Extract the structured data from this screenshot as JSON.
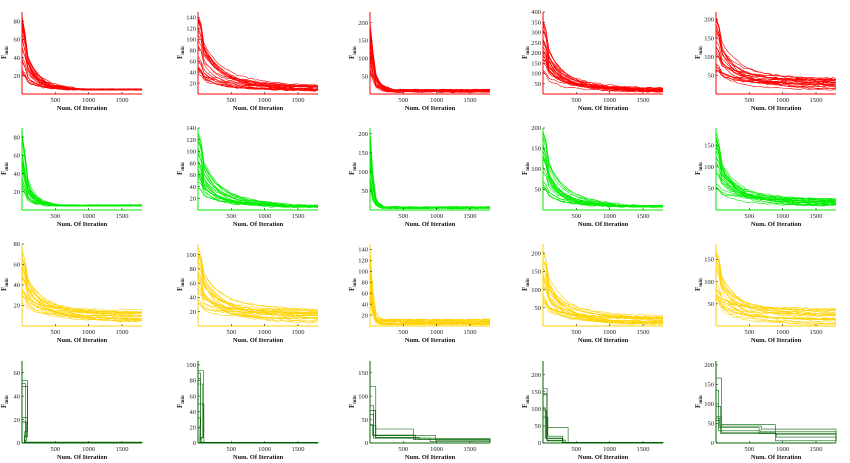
{
  "figure": {
    "xlabel": "Num. Of Iteration",
    "ylabel_main": "F",
    "ylabel_sub": "min",
    "x_ticks": [
      500,
      1000,
      1500
    ],
    "xlim": [
      1,
      1800
    ],
    "row_colors": [
      "#ff0000",
      "#00ee00",
      "#ffd200",
      "#006400"
    ]
  },
  "chart_data": [
    {
      "type": "line",
      "row": 0,
      "col": 0,
      "xlabel": "Num. Of Iteration",
      "ylabel": "F min",
      "ylim": [
        0,
        90
      ],
      "yticks": [
        20,
        40,
        60,
        80
      ],
      "grid": false,
      "series_envelope": {
        "start_max": 85,
        "final_min": 5,
        "final_max": 5,
        "converge_at": 1000
      }
    },
    {
      "type": "line",
      "row": 0,
      "col": 1,
      "xlabel": "Num. Of Iteration",
      "ylabel": "F min",
      "ylim": [
        0,
        150
      ],
      "yticks": [
        20,
        40,
        60,
        80,
        100,
        120,
        140
      ],
      "grid": false,
      "series_envelope": {
        "start_max": 145,
        "final_min": 6,
        "final_max": 16,
        "converge_at": 1800
      }
    },
    {
      "type": "line",
      "row": 0,
      "col": 2,
      "xlabel": "Num. Of Iteration",
      "ylabel": "F min",
      "ylim": [
        0,
        230
      ],
      "yticks": [
        50,
        100,
        150,
        200
      ],
      "grid": false,
      "series_envelope": {
        "start_max": 220,
        "final_min": 5,
        "final_max": 12,
        "converge_at": 400
      }
    },
    {
      "type": "line",
      "row": 0,
      "col": 3,
      "xlabel": "Num. Of Iteration",
      "ylabel": "F min",
      "ylim": [
        0,
        400
      ],
      "yticks": [
        50,
        100,
        150,
        200,
        250,
        300,
        350,
        400
      ],
      "grid": false,
      "series_envelope": {
        "start_max": 390,
        "final_min": 10,
        "final_max": 30,
        "converge_at": 1800
      }
    },
    {
      "type": "line",
      "row": 0,
      "col": 4,
      "xlabel": "Num. Of Iteration",
      "ylabel": "F min",
      "ylim": [
        0,
        220
      ],
      "yticks": [
        50,
        100,
        150,
        200
      ],
      "grid": false,
      "series_envelope": {
        "start_max": 210,
        "final_min": 8,
        "final_max": 45,
        "converge_at": 1800
      }
    },
    {
      "type": "line",
      "row": 1,
      "col": 0,
      "xlabel": "Num. Of Iteration",
      "ylabel": "F min",
      "ylim": [
        0,
        90
      ],
      "yticks": [
        20,
        40,
        60,
        80
      ],
      "grid": false,
      "series_envelope": {
        "start_max": 88,
        "final_min": 5,
        "final_max": 5,
        "converge_at": 600
      }
    },
    {
      "type": "line",
      "row": 1,
      "col": 1,
      "xlabel": "Num. Of Iteration",
      "ylabel": "F min",
      "ylim": [
        0,
        140
      ],
      "yticks": [
        20,
        40,
        60,
        80,
        100,
        120,
        140
      ],
      "grid": false,
      "series_envelope": {
        "start_max": 135,
        "final_min": 5,
        "final_max": 8,
        "converge_at": 1700
      }
    },
    {
      "type": "line",
      "row": 1,
      "col": 2,
      "xlabel": "Num. Of Iteration",
      "ylabel": "F min",
      "ylim": [
        0,
        215
      ],
      "yticks": [
        50,
        100,
        150,
        200
      ],
      "grid": false,
      "series_envelope": {
        "start_max": 210,
        "final_min": 5,
        "final_max": 8,
        "converge_at": 250
      }
    },
    {
      "type": "line",
      "row": 1,
      "col": 3,
      "xlabel": "Num. Of Iteration",
      "ylabel": "F min",
      "ylim": [
        0,
        200
      ],
      "yticks": [
        50,
        100,
        150,
        200
      ],
      "grid": false,
      "series_envelope": {
        "start_max": 195,
        "final_min": 8,
        "final_max": 10,
        "converge_at": 1500
      }
    },
    {
      "type": "line",
      "row": 1,
      "col": 4,
      "xlabel": "Num. Of Iteration",
      "ylabel": "F min",
      "ylim": [
        0,
        190
      ],
      "yticks": [
        50,
        100,
        150
      ],
      "grid": false,
      "series_envelope": {
        "start_max": 185,
        "final_min": 8,
        "final_max": 28,
        "converge_at": 1800
      }
    },
    {
      "type": "line",
      "row": 2,
      "col": 0,
      "xlabel": "Num. Of Iteration",
      "ylabel": "F min",
      "ylim": [
        0,
        80
      ],
      "yticks": [
        20,
        40,
        60,
        80
      ],
      "grid": false,
      "series_envelope": {
        "start_max": 75,
        "final_min": 2,
        "final_max": 16,
        "converge_at": 1800
      }
    },
    {
      "type": "line",
      "row": 2,
      "col": 1,
      "xlabel": "Num. Of Iteration",
      "ylabel": "F min",
      "ylim": [
        0,
        115
      ],
      "yticks": [
        20,
        40,
        60,
        80,
        100
      ],
      "grid": false,
      "series_envelope": {
        "start_max": 110,
        "final_min": 3,
        "final_max": 25,
        "converge_at": 1800
      }
    },
    {
      "type": "line",
      "row": 2,
      "col": 2,
      "xlabel": "Num. Of Iteration",
      "ylabel": "F min",
      "ylim": [
        0,
        150
      ],
      "yticks": [
        20,
        40,
        60,
        80,
        100,
        120,
        140
      ],
      "grid": false,
      "series_envelope": {
        "start_max": 145,
        "final_min": 3,
        "final_max": 12,
        "converge_at": 200
      }
    },
    {
      "type": "line",
      "row": 2,
      "col": 3,
      "xlabel": "Num. Of Iteration",
      "ylabel": "F min",
      "ylim": [
        0,
        225
      ],
      "yticks": [
        50,
        100,
        150,
        200
      ],
      "grid": false,
      "series_envelope": {
        "start_max": 215,
        "final_min": 5,
        "final_max": 28,
        "converge_at": 1800
      }
    },
    {
      "type": "line",
      "row": 2,
      "col": 4,
      "xlabel": "Num. Of Iteration",
      "ylabel": "F min",
      "ylim": [
        0,
        185
      ],
      "yticks": [
        50,
        100,
        150
      ],
      "grid": false,
      "series_envelope": {
        "start_max": 175,
        "final_min": 3,
        "final_max": 40,
        "converge_at": 1800
      }
    },
    {
      "type": "line",
      "row": 3,
      "col": 0,
      "xlabel": "Num. Of Iteration",
      "ylabel": "F min",
      "ylim": [
        0,
        70
      ],
      "yticks": [
        0,
        20,
        40,
        60
      ],
      "grid": false,
      "series_envelope": {
        "start_max": 65,
        "final_min": 0,
        "final_max": 1,
        "converge_at": 50
      }
    },
    {
      "type": "line",
      "row": 3,
      "col": 1,
      "xlabel": "Num. Of Iteration",
      "ylabel": "F min",
      "ylim": [
        0,
        105
      ],
      "yticks": [
        0,
        20,
        40,
        60,
        80,
        100
      ],
      "grid": false,
      "series_envelope": {
        "start_max": 100,
        "final_min": 0,
        "final_max": 1,
        "converge_at": 50
      }
    },
    {
      "type": "line",
      "row": 3,
      "col": 2,
      "xlabel": "Num. Of Iteration",
      "ylabel": "F min",
      "ylim": [
        0,
        175
      ],
      "yticks": [
        0,
        50,
        100,
        150
      ],
      "grid": false,
      "series_envelope": {
        "start_max": 130,
        "final_min": 0,
        "final_max": 10,
        "converge_at": 1000
      }
    },
    {
      "type": "line",
      "row": 3,
      "col": 3,
      "xlabel": "Num. Of Iteration",
      "ylabel": "F min",
      "ylim": [
        0,
        240
      ],
      "yticks": [
        0,
        50,
        100,
        150,
        200
      ],
      "grid": false,
      "series_envelope": {
        "start_max": 230,
        "final_min": 0,
        "final_max": 2,
        "converge_at": 400
      }
    },
    {
      "type": "line",
      "row": 3,
      "col": 4,
      "xlabel": "Num. Of Iteration",
      "ylabel": "F min",
      "ylim": [
        0,
        210
      ],
      "yticks": [
        0,
        50,
        100,
        150,
        200
      ],
      "grid": false,
      "series_envelope": {
        "start_max": 200,
        "final_min": 0,
        "final_max": 40,
        "converge_at": 1000
      }
    }
  ]
}
